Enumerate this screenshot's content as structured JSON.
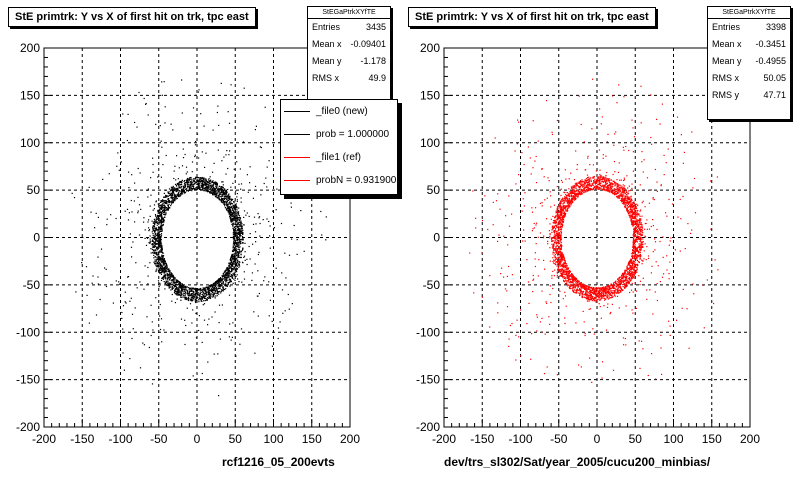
{
  "footer": "",
  "plots": [
    {
      "title": "StE primtrk: Y vs X of first hit on trk, tpc east",
      "stats_name": "StEGaPtrkXYfTE",
      "stats": [
        {
          "label": "Entries",
          "value": "3435"
        },
        {
          "label": "Mean x",
          "value": "-0.09401"
        },
        {
          "label": "Mean y",
          "value": "-1.178"
        },
        {
          "label": "RMS x",
          "value": "49.9"
        }
      ],
      "xlabel": "rcf1216_05_200evts",
      "legend": [
        {
          "label": "_file0 (new)",
          "color": "#000000"
        },
        {
          "label": "prob = 1.000000",
          "color": "#000000"
        },
        {
          "label": "_file1 (ref)",
          "color": "#ff0000"
        },
        {
          "label": "probN = 0.931900",
          "color": "#ff0000"
        }
      ]
    },
    {
      "title": "StE primtrk: Y vs X of first hit on trk, tpc east",
      "stats_name": "StEGaPtrkXYfTE",
      "stats": [
        {
          "label": "Entries",
          "value": "3398"
        },
        {
          "label": "Mean x",
          "value": "-0.3451"
        },
        {
          "label": "Mean y",
          "value": "-0.4955"
        },
        {
          "label": "RMS x",
          "value": "50.05"
        },
        {
          "label": "RMS y",
          "value": "47.71"
        }
      ],
      "xlabel": "dev/trs_sl302/Sat/year_2005/cucu200_minbias/"
    }
  ],
  "chart_data": [
    {
      "type": "scatter",
      "title": "StE primtrk: Y vs X of first hit on trk, tpc east",
      "xlabel": "rcf1216_05_200evts",
      "ylabel": "",
      "xlim": [
        -200,
        200
      ],
      "ylim": [
        -200,
        200
      ],
      "xticks": [
        -200,
        -150,
        -100,
        -50,
        0,
        50,
        100,
        150,
        200
      ],
      "yticks": [
        -200,
        -150,
        -100,
        -50,
        0,
        50,
        100,
        150,
        200
      ],
      "grid": true,
      "color": "#000000",
      "entries": 3435,
      "mean_x": -0.09401,
      "mean_y": -1.178,
      "rms_x": 49.9,
      "ring": {
        "inner_rx": 47,
        "outer_rx": 60,
        "inner_ry": 52,
        "outer_ry": 66
      }
    },
    {
      "type": "scatter",
      "title": "StE primtrk: Y vs X of first hit on trk, tpc east",
      "xlabel": "dev/trs_sl302/Sat/year_2005/cucu200_minbias/",
      "ylabel": "",
      "xlim": [
        -200,
        200
      ],
      "ylim": [
        -200,
        200
      ],
      "xticks": [
        -200,
        -150,
        -100,
        -50,
        0,
        50,
        100,
        150,
        200
      ],
      "yticks": [
        -200,
        -150,
        -100,
        -50,
        0,
        50,
        100,
        150,
        200
      ],
      "grid": true,
      "color": "#ff0000",
      "entries": 3398,
      "mean_x": -0.3451,
      "mean_y": -0.4955,
      "rms_x": 50.05,
      "rms_y": 47.71,
      "ring": {
        "inner_rx": 47,
        "outer_rx": 60,
        "inner_ry": 52,
        "outer_ry": 66
      }
    }
  ]
}
